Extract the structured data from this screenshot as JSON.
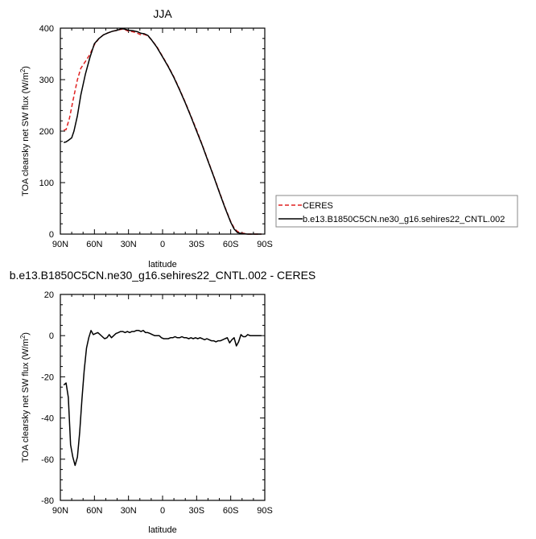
{
  "chart_data": [
    {
      "type": "line",
      "title": "JJA",
      "xlabel": "latitude",
      "ylabel": "TOA clearsky net SW flux (W/m²)",
      "xlim": [
        90,
        -90
      ],
      "ylim": [
        0,
        400
      ],
      "xticks": [
        {
          "value": 90,
          "label": "90N"
        },
        {
          "value": 60,
          "label": "60N"
        },
        {
          "value": 30,
          "label": "30N"
        },
        {
          "value": 0,
          "label": "0"
        },
        {
          "value": -30,
          "label": "30S"
        },
        {
          "value": -60,
          "label": "60S"
        },
        {
          "value": -90,
          "label": "90S"
        }
      ],
      "yticks": [
        {
          "value": 0,
          "label": "0"
        },
        {
          "value": 100,
          "label": "100"
        },
        {
          "value": 200,
          "label": "200"
        },
        {
          "value": 300,
          "label": "300"
        },
        {
          "value": 400,
          "label": "400"
        }
      ],
      "legend_position": "outside-right",
      "series": [
        {
          "name": "CERES",
          "color": "#e02020",
          "dash": "dashed",
          "points": [
            [
              87,
              202
            ],
            [
              85,
              203
            ],
            [
              82,
              225
            ],
            [
              79,
              258
            ],
            [
              75,
              300
            ],
            [
              72,
              322
            ],
            [
              68,
              335
            ],
            [
              64,
              349
            ],
            [
              60,
              368
            ],
            [
              56,
              380
            ],
            [
              52,
              387
            ],
            [
              48,
              391
            ],
            [
              44,
              394
            ],
            [
              40,
              396
            ],
            [
              36,
              398
            ],
            [
              33,
              397
            ],
            [
              30,
              394
            ],
            [
              26,
              393
            ],
            [
              22,
              390
            ],
            [
              19,
              387
            ],
            [
              16,
              388
            ],
            [
              13,
              385
            ],
            [
              10,
              378
            ],
            [
              5,
              364
            ],
            [
              0,
              345
            ],
            [
              -5,
              326
            ],
            [
              -10,
              305
            ],
            [
              -15,
              281
            ],
            [
              -20,
              256
            ],
            [
              -25,
              229
            ],
            [
              -30,
              202
            ],
            [
              -35,
              173
            ],
            [
              -40,
              143
            ],
            [
              -45,
              113
            ],
            [
              -50,
              82
            ],
            [
              -55,
              52
            ],
            [
              -60,
              24
            ],
            [
              -63,
              12
            ],
            [
              -66,
              5
            ],
            [
              -70,
              2
            ],
            [
              -75,
              0
            ],
            [
              -80,
              0
            ],
            [
              -87,
              0
            ]
          ]
        },
        {
          "name": "b.e13.B1850C5CN.ne30_g16.sehires22_CNTL.002",
          "color": "#000000",
          "dash": "solid",
          "points": [
            [
              87,
              178
            ],
            [
              85,
              179
            ],
            [
              83,
              182
            ],
            [
              80,
              187
            ],
            [
              78,
              200
            ],
            [
              75,
              230
            ],
            [
              72,
              270
            ],
            [
              68,
              310
            ],
            [
              64,
              343
            ],
            [
              60,
              370
            ],
            [
              56,
              380
            ],
            [
              52,
              387
            ],
            [
              48,
              391
            ],
            [
              44,
              394
            ],
            [
              40,
              396
            ],
            [
              36,
              399
            ],
            [
              33,
              398
            ],
            [
              30,
              396
            ],
            [
              26,
              395
            ],
            [
              22,
              393
            ],
            [
              19,
              390
            ],
            [
              16,
              389
            ],
            [
              13,
              386
            ],
            [
              10,
              378
            ],
            [
              5,
              363
            ],
            [
              0,
              344
            ],
            [
              -5,
              325
            ],
            [
              -10,
              304
            ],
            [
              -15,
              280
            ],
            [
              -20,
              255
            ],
            [
              -25,
              228
            ],
            [
              -30,
              200
            ],
            [
              -35,
              172
            ],
            [
              -40,
              142
            ],
            [
              -45,
              112
            ],
            [
              -50,
              81
            ],
            [
              -55,
              51
            ],
            [
              -60,
              23
            ],
            [
              -63,
              10
            ],
            [
              -66,
              3
            ],
            [
              -70,
              1
            ],
            [
              -75,
              0
            ],
            [
              -80,
              0
            ],
            [
              -87,
              0
            ]
          ]
        }
      ]
    },
    {
      "type": "line",
      "title": "b.e13.B1850C5CN.ne30_g16.sehires22_CNTL.002 - CERES",
      "xlabel": "latitude",
      "ylabel": "TOA clearsky net SW flux (W/m²)",
      "xlim": [
        90,
        -90
      ],
      "ylim": [
        -80,
        20
      ],
      "xticks": [
        {
          "value": 90,
          "label": "90N"
        },
        {
          "value": 60,
          "label": "60N"
        },
        {
          "value": 30,
          "label": "30N"
        },
        {
          "value": 0,
          "label": "0"
        },
        {
          "value": -30,
          "label": "30S"
        },
        {
          "value": -60,
          "label": "60S"
        },
        {
          "value": -90,
          "label": "90S"
        }
      ],
      "yticks": [
        {
          "value": 20,
          "label": "20"
        },
        {
          "value": 0,
          "label": "0"
        },
        {
          "value": -20,
          "label": "-20"
        },
        {
          "value": -40,
          "label": "-40"
        },
        {
          "value": -60,
          "label": "-60"
        },
        {
          "value": -80,
          "label": "-80"
        }
      ],
      "series": [
        {
          "color": "#000000",
          "dash": "solid",
          "points": [
            [
              87,
              -24
            ],
            [
              85,
              -23
            ],
            [
              83,
              -30
            ],
            [
              81,
              -53
            ],
            [
              79,
              -59
            ],
            [
              77,
              -63
            ],
            [
              75,
              -59
            ],
            [
              73,
              -47
            ],
            [
              71,
              -31
            ],
            [
              69,
              -17
            ],
            [
              67,
              -6
            ],
            [
              65,
              -1
            ],
            [
              63,
              2.5
            ],
            [
              61,
              0.5
            ],
            [
              59,
              1
            ],
            [
              57,
              1.5
            ],
            [
              55,
              0.5
            ],
            [
              53,
              -0.5
            ],
            [
              51,
              -1.5
            ],
            [
              49,
              -1
            ],
            [
              47,
              0.5
            ],
            [
              45,
              -1
            ],
            [
              43,
              0
            ],
            [
              41,
              1
            ],
            [
              39,
              1.5
            ],
            [
              37,
              2
            ],
            [
              35,
              2
            ],
            [
              33,
              1.5
            ],
            [
              31,
              2
            ],
            [
              29,
              1.5
            ],
            [
              27,
              2
            ],
            [
              25,
              2
            ],
            [
              23,
              2.5
            ],
            [
              21,
              2.5
            ],
            [
              19,
              2
            ],
            [
              17,
              2.5
            ],
            [
              15,
              1.5
            ],
            [
              13,
              1.5
            ],
            [
              11,
              1
            ],
            [
              9,
              0.5
            ],
            [
              7,
              0
            ],
            [
              5,
              0
            ],
            [
              3,
              0
            ],
            [
              1,
              -1
            ],
            [
              -1,
              -1.5
            ],
            [
              -3,
              -1.5
            ],
            [
              -5,
              -1.5
            ],
            [
              -7,
              -1
            ],
            [
              -9,
              -1
            ],
            [
              -11,
              -0.5
            ],
            [
              -13,
              -1
            ],
            [
              -15,
              -1
            ],
            [
              -17,
              -0.5
            ],
            [
              -19,
              -1
            ],
            [
              -21,
              -1
            ],
            [
              -23,
              -1.5
            ],
            [
              -25,
              -1
            ],
            [
              -27,
              -1.5
            ],
            [
              -29,
              -1
            ],
            [
              -31,
              -1.5
            ],
            [
              -33,
              -1
            ],
            [
              -35,
              -1.5
            ],
            [
              -37,
              -2
            ],
            [
              -39,
              -1.5
            ],
            [
              -41,
              -2
            ],
            [
              -43,
              -2.5
            ],
            [
              -45,
              -2.5
            ],
            [
              -47,
              -3
            ],
            [
              -49,
              -2.5
            ],
            [
              -51,
              -2.5
            ],
            [
              -53,
              -2
            ],
            [
              -55,
              -1.5
            ],
            [
              -57,
              -1
            ],
            [
              -59,
              -3.5
            ],
            [
              -61,
              -2
            ],
            [
              -63,
              -1
            ],
            [
              -65,
              -5
            ],
            [
              -67,
              -3
            ],
            [
              -69,
              0.5
            ],
            [
              -71,
              -0.5
            ],
            [
              -73,
              -0.5
            ],
            [
              -75,
              0.5
            ],
            [
              -77,
              0
            ],
            [
              -80,
              0
            ],
            [
              -84,
              0
            ],
            [
              -87,
              0
            ]
          ]
        }
      ]
    }
  ]
}
